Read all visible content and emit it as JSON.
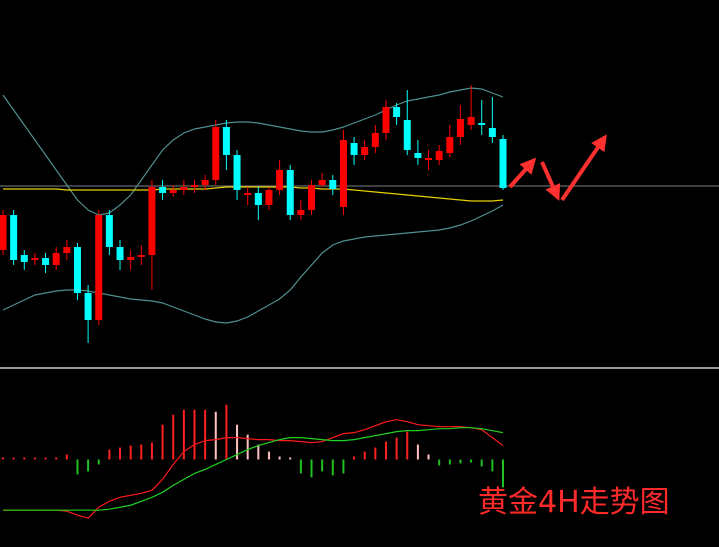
{
  "chart_data": [
    {
      "type": "candlestick",
      "title": "黄金4H走势图",
      "up_color": "#ff0000",
      "down_color": "#00ffff",
      "open": [
        115,
        150,
        110,
        105,
        107,
        100,
        112,
        118,
        72,
        45,
        150,
        118,
        105,
        108,
        110,
        178,
        172,
        175,
        178,
        180,
        185,
        238,
        210,
        170,
        172,
        160,
        175,
        195,
        150,
        155,
        180,
        185,
        158,
        222,
        210,
        218,
        232,
        258,
        245,
        212,
        205,
        205,
        212,
        228,
        240,
        242,
        237,
        226
      ],
      "close": [
        150,
        105,
        103,
        107,
        100,
        112,
        118,
        72,
        45,
        150,
        118,
        105,
        108,
        110,
        178,
        172,
        175,
        178,
        180,
        185,
        238,
        210,
        175,
        172,
        160,
        175,
        195,
        150,
        155,
        180,
        185,
        176,
        225,
        210,
        218,
        232,
        258,
        248,
        215,
        207,
        207,
        214,
        228,
        246,
        248,
        240,
        228,
        177
      ],
      "high": [
        155,
        155,
        115,
        112,
        112,
        118,
        125,
        122,
        80,
        155,
        155,
        125,
        115,
        120,
        185,
        185,
        180,
        185,
        185,
        190,
        245,
        245,
        215,
        178,
        178,
        178,
        205,
        200,
        165,
        185,
        192,
        190,
        235,
        228,
        225,
        240,
        265,
        262,
        275,
        225,
        215,
        220,
        240,
        260,
        280,
        265,
        268,
        230
      ],
      "low": [
        110,
        100,
        95,
        100,
        92,
        95,
        105,
        65,
        22,
        40,
        110,
        95,
        95,
        100,
        75,
        165,
        168,
        170,
        172,
        175,
        180,
        195,
        165,
        160,
        145,
        155,
        170,
        145,
        145,
        150,
        178,
        170,
        150,
        200,
        205,
        212,
        225,
        240,
        210,
        200,
        195,
        200,
        208,
        220,
        235,
        230,
        222,
        175
      ],
      "series": [
        {
          "color": "#4f8f8f",
          "values": [
            270,
            255,
            240,
            225,
            210,
            195,
            180,
            165,
            155,
            150,
            152,
            160,
            170,
            185,
            200,
            215,
            225,
            232,
            236,
            238,
            240,
            242,
            243,
            243,
            242,
            240,
            238,
            236,
            234,
            233,
            233,
            235,
            238,
            242,
            246,
            250,
            255,
            260,
            264,
            266,
            268,
            270,
            273,
            275,
            277,
            276,
            272,
            268
          ]
        },
        {
          "color": "#e5d000",
          "values": [
            176,
            176,
            176,
            176,
            176,
            176,
            175,
            175,
            175,
            175,
            175,
            175,
            175,
            175,
            175,
            176,
            176,
            176,
            176,
            176,
            177,
            178,
            178,
            178,
            178,
            178,
            178,
            178,
            177,
            177,
            176,
            176,
            176,
            175,
            174,
            173,
            172,
            171,
            170,
            169,
            168,
            167,
            166,
            165,
            164,
            164,
            164,
            165
          ]
        },
        {
          "color": "#4f8f8f",
          "values": [
            55,
            60,
            65,
            70,
            72,
            74,
            75,
            75,
            74,
            72,
            70,
            68,
            66,
            65,
            64,
            62,
            58,
            54,
            50,
            46,
            43,
            42,
            44,
            48,
            54,
            60,
            66,
            75,
            88,
            100,
            112,
            120,
            124,
            126,
            128,
            129,
            130,
            131,
            132,
            133,
            134,
            135,
            137,
            140,
            144,
            149,
            154,
            160
          ]
        }
      ],
      "hline": 179,
      "hline_color": "#808080",
      "ylim": [
        0,
        365
      ]
    },
    {
      "type": "oscillator",
      "rise_color": "#ff2020",
      "fall_color": "#ffc0c0",
      "neg_color": "#20c020",
      "values": [
        2,
        2,
        2,
        2,
        2,
        2,
        5,
        -15,
        -12,
        -5,
        10,
        12,
        14,
        15,
        17,
        35,
        45,
        50,
        50,
        50,
        48,
        55,
        35,
        25,
        15,
        8,
        3,
        2,
        -14,
        -18,
        -12,
        -16,
        -14,
        3,
        8,
        12,
        18,
        22,
        28,
        15,
        5,
        -6,
        -5,
        -4,
        -3,
        -7,
        -12,
        -28
      ],
      "series": [
        {
          "color": "#ff1a1a",
          "values": [
            -51,
            -51,
            -51,
            -51,
            -51,
            -51,
            -52,
            -56,
            -59,
            -48,
            -42,
            -38,
            -36,
            -34,
            -31,
            -20,
            -5,
            8,
            15,
            19,
            20,
            22,
            22,
            21,
            20,
            20,
            19,
            19,
            18,
            17,
            18,
            22,
            26,
            27,
            30,
            34,
            38,
            40,
            38,
            35,
            34,
            33,
            33,
            33,
            32,
            30,
            22,
            14
          ]
        },
        {
          "color": "#20d020",
          "values": [
            -51,
            -51,
            -51,
            -51,
            -51,
            -51,
            -51,
            -51,
            -51,
            -51,
            -50,
            -48,
            -46,
            -42,
            -38,
            -33,
            -26,
            -20,
            -14,
            -10,
            -5,
            0,
            5,
            10,
            14,
            17,
            20,
            22,
            22,
            21,
            20,
            19,
            19,
            20,
            22,
            24,
            26,
            28,
            29,
            29,
            30,
            31,
            31,
            32,
            32,
            31,
            29,
            27
          ]
        }
      ],
      "ylim": [
        -88,
        90
      ]
    }
  ]
}
